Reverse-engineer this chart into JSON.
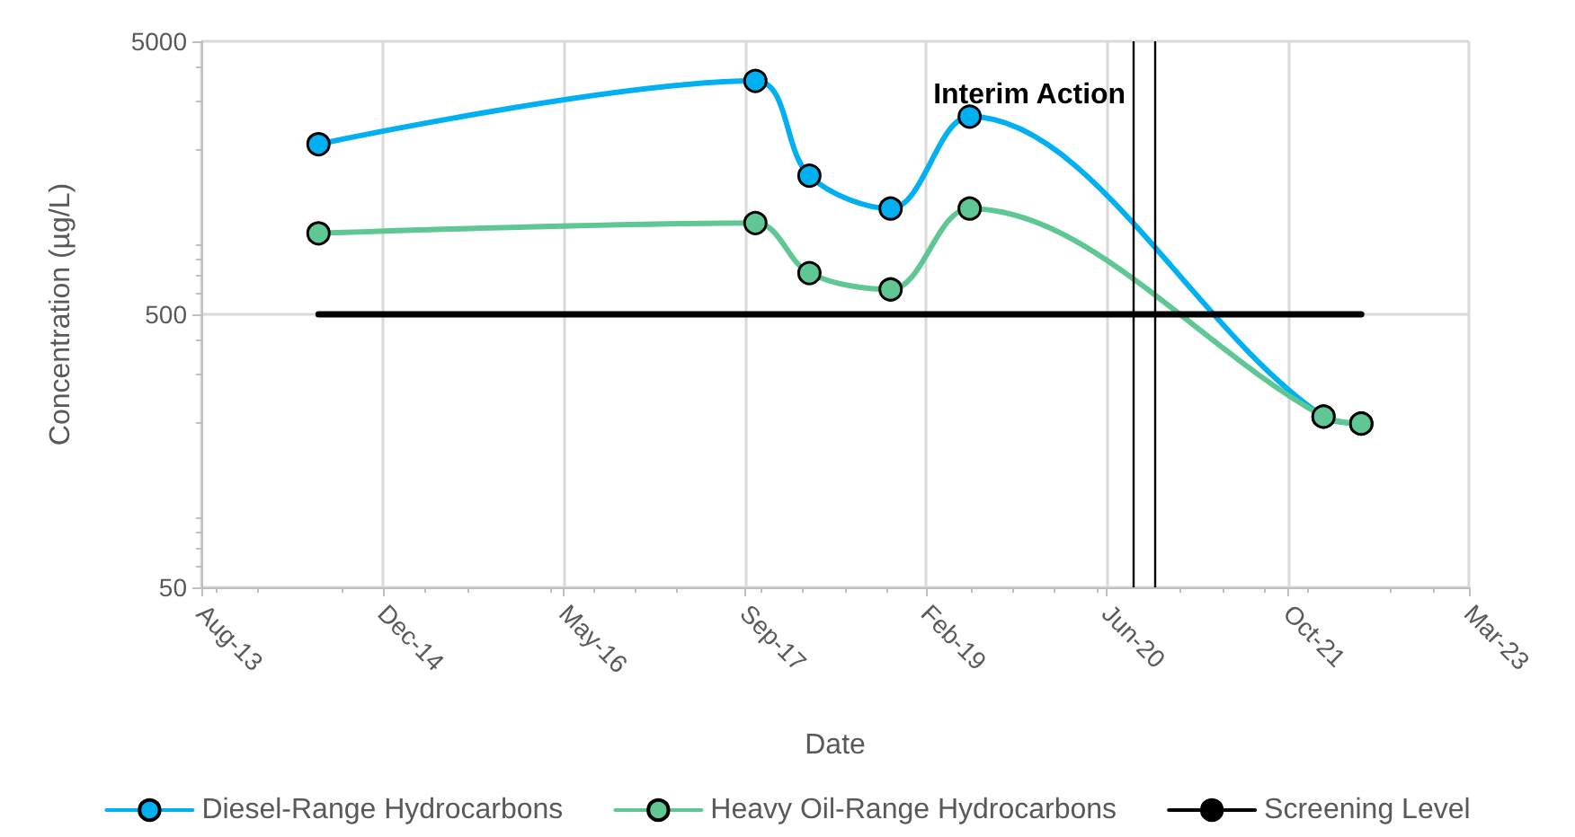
{
  "chart_data": {
    "type": "line",
    "xlabel": "Date",
    "ylabel": "Concentration (µg/L)",
    "series": [
      {
        "name": "Diesel-Range Hydrocarbons",
        "color": "#00b0f0",
        "marker": "circle",
        "x": [
          "2014-07-05",
          "2017-10-22",
          "2018-03-20",
          "2018-10-30",
          "2019-06-05",
          "2022-02-05",
          "2022-05-20"
        ],
        "values": [
          2100,
          3580,
          1610,
          1220,
          2650,
          211,
          199
        ]
      },
      {
        "name": "Heavy Oil-Range Hydrocarbons",
        "color": "#5ec794",
        "marker": "circle",
        "x": [
          "2014-07-05",
          "2017-10-22",
          "2018-03-20",
          "2018-10-30",
          "2019-06-05",
          "2022-02-05",
          "2022-05-20"
        ],
        "values": [
          990,
          1080,
          708,
          617,
          1220,
          211,
          199
        ]
      },
      {
        "name": "Screening Level",
        "color": "#000000",
        "marker": "none",
        "x": [
          "2014-07-05",
          "2022-05-20"
        ],
        "values": [
          500,
          500
        ]
      }
    ],
    "ref_lines": [
      {
        "axis": "x",
        "value": "2020-08-28",
        "label": "Interim Action",
        "color": "#000000"
      },
      {
        "axis": "x",
        "value": "2020-10-27",
        "color": "#000000"
      }
    ],
    "xlim": [
      "2013-08-16",
      "2023-03-13"
    ],
    "xticks": [
      {
        "value": "2013-08-16",
        "label": "Aug-13"
      },
      {
        "value": "2014-12-29",
        "label": "Dec-14"
      },
      {
        "value": "2016-05-12",
        "label": "May-16"
      },
      {
        "value": "2017-09-23",
        "label": "Sep-17"
      },
      {
        "value": "2019-02-04",
        "label": "Feb-19"
      },
      {
        "value": "2020-06-17",
        "label": "Jun-20"
      },
      {
        "value": "2021-10-30",
        "label": "Oct-21"
      },
      {
        "value": "2023-03-13",
        "label": "Mar-23"
      }
    ],
    "ylim": [
      50,
      5000
    ],
    "yticks": [
      50,
      500,
      5000
    ],
    "log": true,
    "grid": true,
    "legend": "bottom"
  }
}
